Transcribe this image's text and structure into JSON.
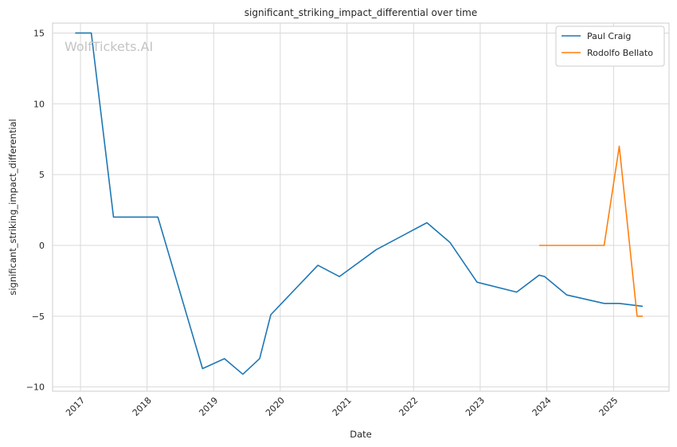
{
  "chart_data": {
    "type": "line",
    "title": "significant_striking_impact_differential over time",
    "xlabel": "Date",
    "ylabel": "significant_striking_impact_differential",
    "watermark": "WolfTickets.AI",
    "x_tick_labels": [
      "2017",
      "2018",
      "2019",
      "2020",
      "2021",
      "2022",
      "2023",
      "2024",
      "2025"
    ],
    "y_ticks": [
      -10,
      -5,
      0,
      5,
      10,
      15
    ],
    "y_tick_labels": [
      "−10",
      "−5",
      "0",
      "5",
      "10",
      "15"
    ],
    "xlim": [
      "2016-08-01",
      "2025-11-01"
    ],
    "ylim": [
      -10.3,
      15.7
    ],
    "grid": true,
    "legend_position": "top-right",
    "series": [
      {
        "name": "Paul Craig",
        "color": "#1f77b4",
        "points": [
          [
            "2016-12-03",
            15.0
          ],
          [
            "2017-03-01",
            15.0
          ],
          [
            "2017-07-01",
            2.0
          ],
          [
            "2018-03-01",
            2.0
          ],
          [
            "2018-11-01",
            -8.7
          ],
          [
            "2019-03-01",
            -8.0
          ],
          [
            "2019-06-10",
            -9.1
          ],
          [
            "2019-09-10",
            -8.0
          ],
          [
            "2019-11-10",
            -4.9
          ],
          [
            "2020-07-25",
            -1.4
          ],
          [
            "2020-11-20",
            -2.2
          ],
          [
            "2021-06-10",
            -0.3
          ],
          [
            "2022-03-15",
            1.6
          ],
          [
            "2022-07-20",
            0.2
          ],
          [
            "2022-12-15",
            -2.6
          ],
          [
            "2023-07-20",
            -3.3
          ],
          [
            "2023-11-20",
            -2.1
          ],
          [
            "2023-12-20",
            -2.2
          ],
          [
            "2024-04-20",
            -3.5
          ],
          [
            "2024-11-10",
            -4.1
          ],
          [
            "2025-02-01",
            -4.1
          ],
          [
            "2025-06-10",
            -4.3
          ]
        ]
      },
      {
        "name": "Rodolfo Bellato",
        "color": "#ff7f0e",
        "points": [
          [
            "2023-11-20",
            0.0
          ],
          [
            "2024-11-10",
            0.0
          ],
          [
            "2025-02-01",
            7.0
          ],
          [
            "2025-05-10",
            -5.0
          ],
          [
            "2025-06-10",
            -5.0
          ]
        ]
      }
    ]
  }
}
